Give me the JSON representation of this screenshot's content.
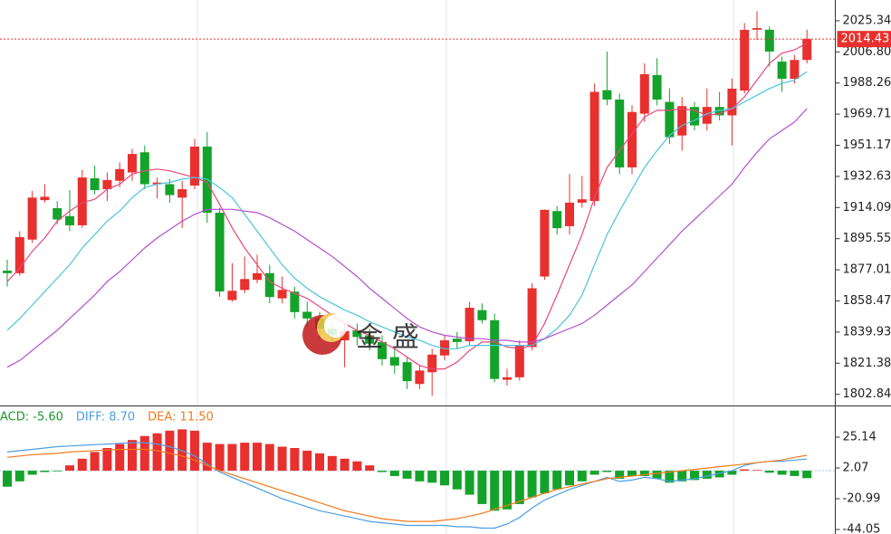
{
  "chart_data": [
    {
      "type": "candlestick",
      "open": [
        1876.5,
        1875,
        1895,
        1918.5,
        1913.7,
        1909,
        1903.5,
        1931.5,
        1925,
        1930,
        1935,
        1947,
        1928,
        1928,
        1920,
        1927.2,
        1950.4,
        1911,
        1859,
        1865,
        1871,
        1875,
        1860,
        1864,
        1852,
        1848,
        1842,
        1835,
        1841,
        1838,
        1834,
        1825,
        1822,
        1809,
        1816,
        1826,
        1836,
        1834.5,
        1853,
        1847,
        1811.5,
        1813,
        1831,
        1873,
        1912,
        1903,
        1917,
        1918,
        1984,
        1978.4,
        1938,
        1970,
        1993,
        1977,
        1957,
        1974,
        1964,
        1974,
        1969,
        1983.8,
        2020,
        2020,
        2001,
        1990.8,
        2002
      ],
      "high": [
        1883,
        1900,
        1924,
        1928,
        1918,
        1924.5,
        1936.5,
        1939,
        1935,
        1941,
        1949,
        1951,
        1932,
        1931,
        1930,
        1955,
        1959,
        1914,
        1881,
        1885,
        1886,
        1880,
        1873,
        1867,
        1858,
        1852,
        1846,
        1845,
        1845,
        1842,
        1838,
        1830,
        1825,
        1820,
        1830,
        1838,
        1840,
        1858,
        1857,
        1851,
        1818,
        1835,
        1869,
        1913,
        1915,
        1934,
        1933,
        1988,
        2007,
        1982,
        1975,
        2000,
        2003,
        1985,
        1980,
        1977,
        1985,
        1983,
        1991,
        2024,
        2031,
        2022,
        2004,
        2005,
        2020
      ],
      "low": [
        1867,
        1873.5,
        1893,
        1917,
        1904,
        1900,
        1902,
        1922,
        1918,
        1926,
        1930,
        1925,
        1919.5,
        1917,
        1902,
        1925,
        1905,
        1861,
        1858,
        1863,
        1869,
        1857,
        1857,
        1848,
        1843,
        1836,
        1834,
        1819,
        1832,
        1829,
        1820,
        1815,
        1806,
        1806,
        1802,
        1823,
        1830,
        1832,
        1845,
        1810,
        1808,
        1811,
        1829,
        1871,
        1898,
        1898,
        1914,
        1915,
        1975,
        1934,
        1934,
        1965,
        1975,
        1952,
        1948,
        1960,
        1960,
        1966,
        1951,
        1982,
        2014,
        1998,
        1983,
        1988,
        2000
      ],
      "close": [
        1875,
        1896.5,
        1920,
        1920.5,
        1907,
        1903.5,
        1932,
        1924.5,
        1930.5,
        1937,
        1946,
        1928,
        1929,
        1921.5,
        1925,
        1950.4,
        1911,
        1864.1,
        1864.5,
        1871.5,
        1875,
        1860.8,
        1865,
        1851.8,
        1848,
        1842,
        1838,
        1840.5,
        1837,
        1833,
        1823.8,
        1820,
        1810.7,
        1817,
        1826.5,
        1835,
        1834,
        1854.4,
        1847,
        1812,
        1813,
        1832.3,
        1866,
        1912.7,
        1901.8,
        1917,
        1919,
        1983,
        1978.4,
        1938,
        1971,
        1993.5,
        1978.4,
        1956,
        1974.5,
        1963,
        1974,
        1969,
        1984.9,
        2019.9,
        2021,
        2007,
        1990.8,
        2002,
        2014.43
      ],
      "up_color": "#e8302e",
      "down_color": "#14a32a",
      "series": [
        {
          "color": "#e8467c",
          "values": [
            1870,
            1878,
            1888,
            1896,
            1906,
            1912,
            1917,
            1919,
            1925,
            1928,
            1934,
            1936,
            1937,
            1936,
            1934,
            1932,
            1929,
            1916,
            1902,
            1890,
            1880,
            1870,
            1866,
            1863,
            1860,
            1855,
            1850,
            1845,
            1841,
            1838,
            1834,
            1830,
            1825,
            1820,
            1818,
            1818,
            1822,
            1829,
            1834,
            1834,
            1831,
            1830,
            1832,
            1845,
            1862,
            1880,
            1898,
            1920,
            1938,
            1948,
            1958,
            1968,
            1972,
            1972,
            1973,
            1972,
            1969,
            1970,
            1973,
            1980,
            1990,
            2000,
            2006,
            2008,
            2012
          ]
        },
        {
          "color": "#4cc3e0",
          "values": [
            1841,
            1848,
            1856,
            1864,
            1872,
            1880,
            1890,
            1898,
            1906,
            1912,
            1920,
            1926,
            1928,
            1929,
            1931,
            1932,
            1931,
            1926,
            1920,
            1910,
            1900,
            1890,
            1880,
            1872,
            1866,
            1861,
            1857,
            1853,
            1850,
            1846,
            1843,
            1840,
            1837,
            1835,
            1832,
            1830,
            1830,
            1832,
            1832,
            1832,
            1832,
            1832,
            1832,
            1836,
            1842,
            1850,
            1862,
            1880,
            1898,
            1912,
            1925,
            1938,
            1948,
            1957,
            1963,
            1966,
            1970,
            1972,
            1973,
            1977,
            1981,
            1985,
            1988,
            1990,
            1995
          ]
        },
        {
          "color": "#b44ed0",
          "values": [
            1819,
            1823,
            1829,
            1835,
            1841,
            1848,
            1855,
            1862,
            1870,
            1876,
            1883,
            1890,
            1896,
            1901,
            1906,
            1910,
            1913,
            1913,
            1913,
            1912,
            1911,
            1908,
            1904,
            1900,
            1895,
            1890,
            1885,
            1879,
            1873,
            1866,
            1860,
            1854,
            1848,
            1843,
            1840,
            1838,
            1837,
            1836,
            1836,
            1835,
            1835,
            1834,
            1834,
            1836,
            1839,
            1842,
            1845,
            1850,
            1856,
            1862,
            1868,
            1876,
            1884,
            1892,
            1900,
            1907,
            1914,
            1921,
            1928,
            1938,
            1947,
            1955,
            1960,
            1965,
            1973
          ]
        }
      ],
      "ylim": [
        1796.2,
        2037.7
      ],
      "yticks": [
        2025.34,
        {
          "value": 2006.8,
          "label": "2006.80"
        },
        1988.26,
        1969.71,
        1951.17,
        1932.63,
        1914.09,
        1895.55,
        1877.01,
        1858.47,
        1839.93,
        1821.38,
        1802.84
      ],
      "current_price": 2014.43,
      "current_price_color": "#e8302e",
      "watermark": "金 盛"
    },
    {
      "type": "macd",
      "histogram": {
        "name": "ACD: -5.60",
        "color": "#1a9a2a",
        "up_color": "#e8302e",
        "down_color": "#14a32a",
        "values": [
          -12,
          -8,
          -3,
          -1,
          -0.5,
          4,
          9,
          14,
          17,
          20,
          23,
          26,
          28,
          30,
          31,
          30,
          21,
          20,
          20,
          21,
          21,
          20,
          18,
          17,
          15,
          13,
          11,
          9,
          7,
          4,
          -1,
          -4,
          -6,
          -8,
          -9,
          -11,
          -14,
          -18,
          -25,
          -30,
          -29,
          -25,
          -20,
          -17,
          -14,
          -11,
          -8,
          -3,
          -1,
          -6,
          -4,
          -4,
          -6,
          -9,
          -8,
          -7,
          -6,
          -5,
          -3,
          1,
          0.5,
          -1.5,
          -3,
          -4,
          -5.6
        ]
      },
      "series": [
        {
          "name": "DIFF: 8.70",
          "color": "#4a9fe6",
          "values": [
            14,
            15,
            16,
            17,
            18,
            18.5,
            19,
            19.5,
            20,
            20.5,
            21,
            21,
            20,
            18,
            15,
            11,
            5,
            -1,
            -5,
            -9,
            -13,
            -17,
            -21,
            -24,
            -27,
            -30,
            -32,
            -34,
            -36,
            -38,
            -39,
            -40,
            -41,
            -41,
            -41,
            -41,
            -42,
            -42,
            -43,
            -43,
            -40,
            -35,
            -28,
            -22,
            -18,
            -14,
            -11,
            -8,
            -5,
            -8,
            -7,
            -5,
            -6,
            -8,
            -7,
            -6,
            -4,
            -2,
            0,
            4,
            6,
            7,
            7,
            8,
            8.7
          ]
        },
        {
          "name": "DEA: 11.50",
          "color": "#f07a1e",
          "values": [
            10,
            11,
            12,
            12.5,
            13,
            14,
            14.5,
            15,
            15.5,
            16,
            16,
            16,
            15,
            13,
            11,
            8,
            4,
            0,
            -3,
            -6,
            -9,
            -12,
            -15,
            -18,
            -21,
            -24,
            -27,
            -30,
            -32,
            -34,
            -36,
            -37,
            -38,
            -38,
            -38,
            -37,
            -36,
            -34,
            -32,
            -29,
            -26,
            -23,
            -20,
            -17,
            -14,
            -12,
            -10,
            -8,
            -6,
            -5,
            -4,
            -3,
            -2,
            -1,
            0,
            1,
            2,
            3,
            4,
            5,
            6,
            7,
            8,
            10,
            11.5
          ]
        }
      ],
      "ylim": [
        -47.44,
        47.52
      ],
      "yticks": [
        25.14,
        2.07,
        -20.99,
        -44.05
      ]
    }
  ]
}
